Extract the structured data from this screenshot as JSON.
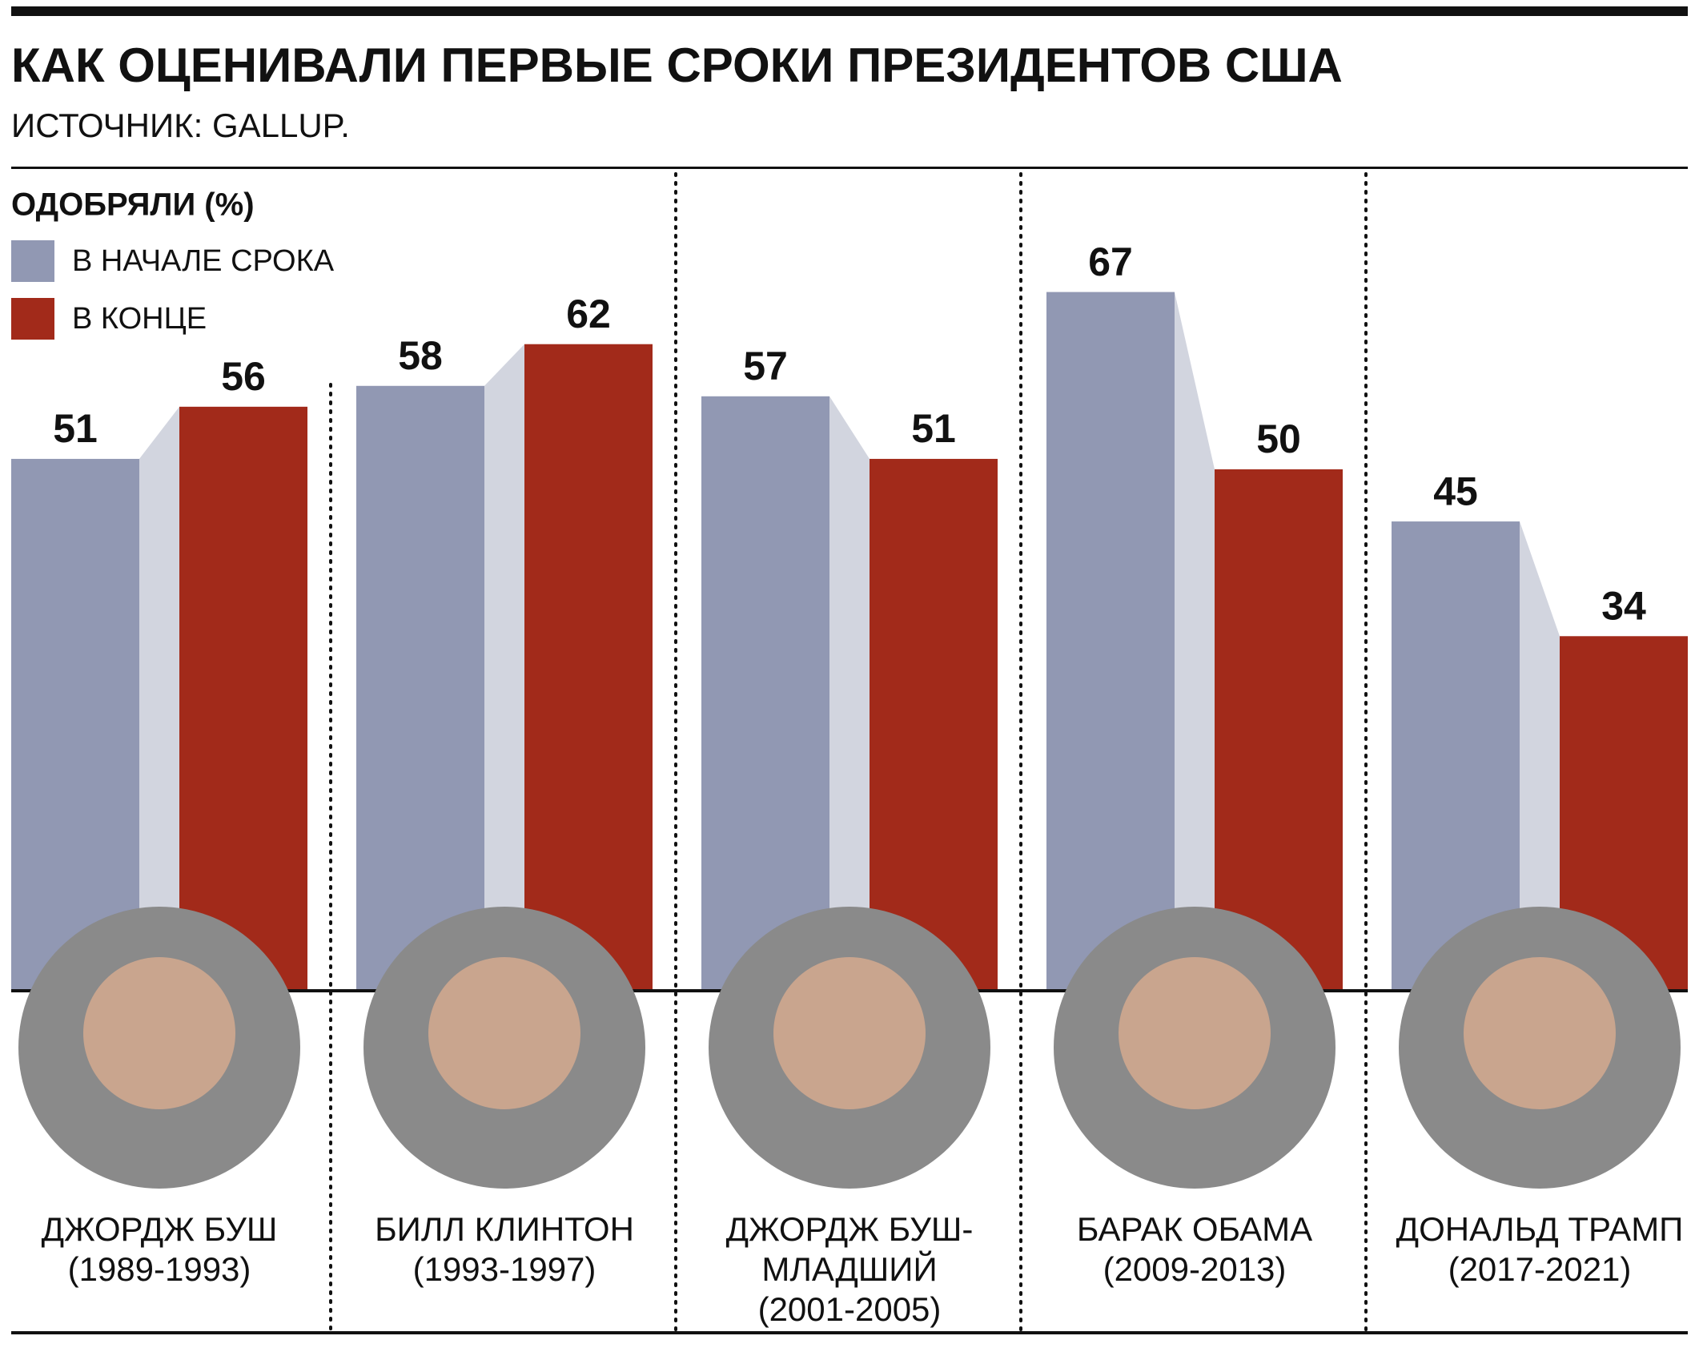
{
  "chart_data": {
    "type": "bar",
    "title": "КАК ОЦЕНИВАЛИ ПЕРВЫЕ СРОКИ ПРЕЗИДЕНТОВ США",
    "subtitle": "ИСТОЧНИК: GALLUP.",
    "legend_title": "ОДОБРЯЛИ (%)",
    "categories": [
      "ДЖОРДЖ БУШ",
      "БИЛЛ КЛИНТОН",
      "ДЖОРДЖ БУШ-МЛАДШИЙ",
      "БАРАК ОБАМА",
      "ДОНАЛЬД ТРАМП"
    ],
    "periods": [
      "(1989-1993)",
      "(1993-1997)",
      "(2001-2005)",
      "(2009-2013)",
      "(2017-2021)"
    ],
    "series": [
      {
        "name": "В НАЧАЛЕ СРОКА",
        "color": "#9198b3",
        "values": [
          51,
          58,
          57,
          67,
          45
        ]
      },
      {
        "name": "В КОНЦЕ",
        "color": "#a22a1a",
        "values": [
          56,
          62,
          51,
          50,
          34
        ]
      }
    ],
    "connector_color": "#d2d5df",
    "ylim": [
      0,
      95
    ],
    "legend": "top-left"
  }
}
